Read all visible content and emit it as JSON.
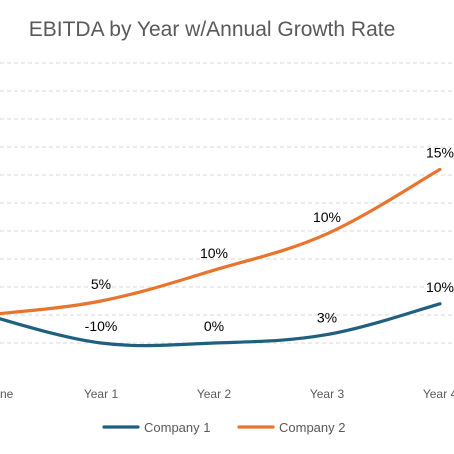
{
  "chart_data": {
    "type": "line",
    "title": "EBITDA by Year w/Annual Growth Rate",
    "categories": [
      "Baseline",
      "Year 1",
      "Year 2",
      "Year 3",
      "Year 4"
    ],
    "visible_tick_labels": [
      "ne",
      "Year 1",
      "Year 2",
      "Year 3",
      "Year 4"
    ],
    "ylim": [
      0,
      10
    ],
    "grid": true,
    "legend_position": "bottom",
    "series": [
      {
        "name": "Company 1",
        "color": "#1F5F7F",
        "values": [
          1.0,
          0.0,
          0.0,
          0.3,
          1.4
        ],
        "labels": [
          "",
          "-10%",
          "0%",
          "3%",
          "10%"
        ]
      },
      {
        "name": "Company 2",
        "color": "#E8742E",
        "values": [
          1.0,
          1.5,
          2.6,
          3.9,
          6.2
        ],
        "labels": [
          "",
          "5%",
          "10%",
          "10%",
          "15%"
        ]
      }
    ]
  }
}
